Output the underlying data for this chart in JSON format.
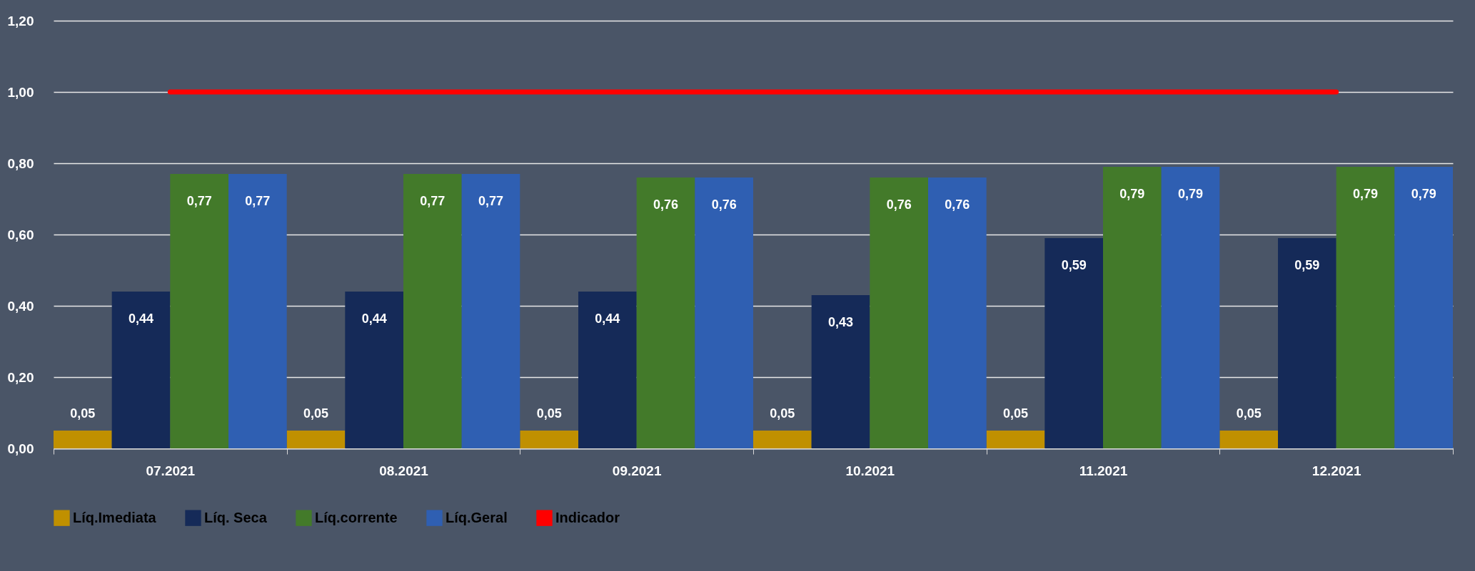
{
  "chart_data": {
    "type": "bar",
    "categories": [
      "07.2021",
      "08.2021",
      "09.2021",
      "10.2021",
      "11.2021",
      "12.2021"
    ],
    "series": [
      {
        "name": "Líq.Imediata",
        "color": "#c09000",
        "values": [
          0.05,
          0.05,
          0.05,
          0.05,
          0.05,
          0.05
        ],
        "value_labels": [
          "0,05",
          "0,05",
          "0,05",
          "0,05",
          "0,05",
          "0,05"
        ]
      },
      {
        "name": "Líq. Seca",
        "color": "#152a58",
        "values": [
          0.44,
          0.44,
          0.44,
          0.43,
          0.59,
          0.59
        ],
        "value_labels": [
          "0,44",
          "0,44",
          "0,44",
          "0,43",
          "0,59",
          "0,59"
        ]
      },
      {
        "name": "Líq.corrente",
        "color": "#437a2a",
        "values": [
          0.77,
          0.77,
          0.76,
          0.76,
          0.79,
          0.79
        ],
        "value_labels": [
          "0,77",
          "0,77",
          "0,76",
          "0,76",
          "0,79",
          "0,79"
        ]
      },
      {
        "name": "Líq.Geral",
        "color": "#2f5fb2",
        "values": [
          0.77,
          0.77,
          0.76,
          0.76,
          0.79,
          0.79
        ],
        "value_labels": [
          "0,77",
          "0,77",
          "0,76",
          "0,76",
          "0,79",
          "0,79"
        ]
      },
      {
        "name": "Indicador",
        "color": "#ff0000",
        "type": "line",
        "values": [
          1,
          1,
          1,
          1,
          1,
          1
        ]
      }
    ],
    "ylim": [
      0,
      1.2
    ],
    "yticks": [
      {
        "value": 0,
        "label": "0,00"
      },
      {
        "value": 0.2,
        "label": "0,20"
      },
      {
        "value": 0.4,
        "label": "0,40"
      },
      {
        "value": 0.6,
        "label": "0,60"
      },
      {
        "value": 0.8,
        "label": "0,80"
      },
      {
        "value": 1,
        "label": "1,00"
      },
      {
        "value": 1.2,
        "label": "1,20"
      }
    ],
    "grid": "y",
    "legend": "bottom"
  }
}
